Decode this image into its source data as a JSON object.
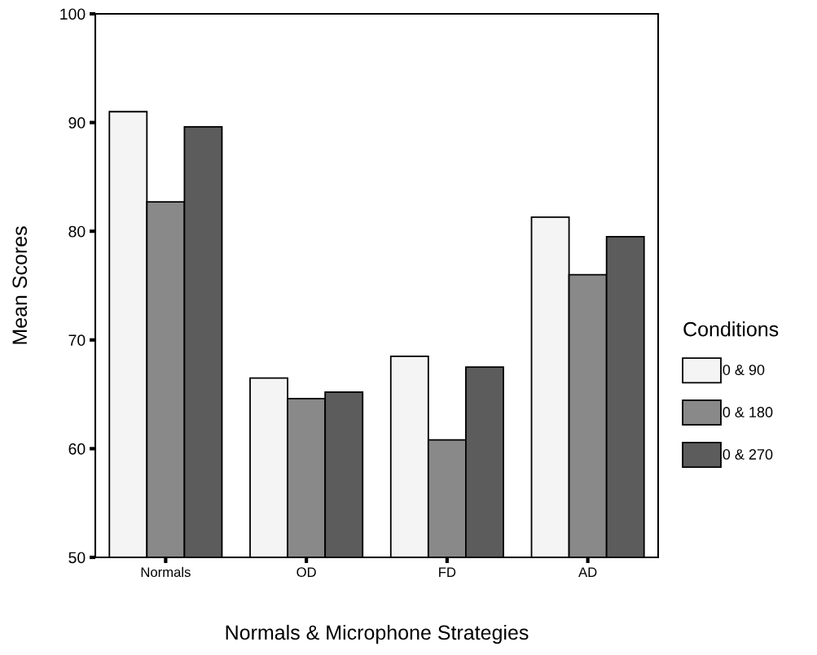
{
  "chart_data": {
    "type": "bar",
    "xlabel": "Normals & Microphone Strategies",
    "ylabel": "Mean Scores",
    "legend_title": "Conditions",
    "categories": [
      "Normals",
      "OD",
      "FD",
      "AD"
    ],
    "series": [
      {
        "name": "0 & 90",
        "color": "#f4f4f4",
        "values": [
          91.0,
          66.5,
          68.5,
          81.3
        ]
      },
      {
        "name": "0 & 180",
        "color": "#898989",
        "values": [
          82.7,
          64.6,
          60.8,
          76.0
        ]
      },
      {
        "name": "0 & 270",
        "color": "#5c5c5c",
        "values": [
          89.6,
          65.2,
          67.5,
          79.5
        ]
      }
    ],
    "ylim": [
      50,
      100
    ],
    "yticks": [
      50,
      60,
      70,
      80,
      90,
      100
    ],
    "grid": false,
    "legend": "right"
  }
}
